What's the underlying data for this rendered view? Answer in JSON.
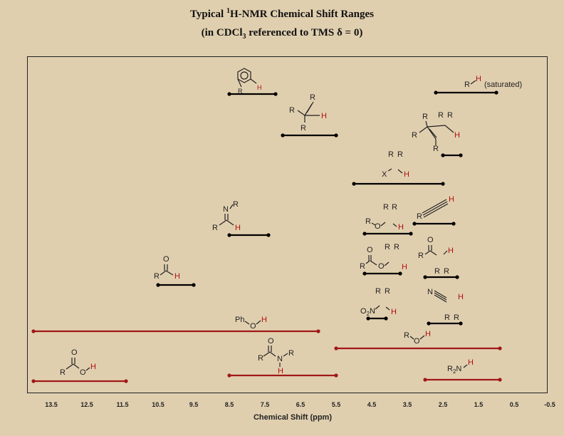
{
  "title": {
    "pre": "Typical ",
    "sup": "1",
    "post": "H-NMR Chemical Shift Ranges",
    "line2_pre": "(in CDCl",
    "line2_sub": "3",
    "line2_post": " referenced to TMS δ = 0)"
  },
  "xaxis": {
    "label": "Chemical Shift (ppm)",
    "ticks": [
      "13.5",
      "12.5",
      "11.5",
      "10.5",
      "9.5",
      "8.5",
      "7.5",
      "6.5",
      "5.5",
      "4.5",
      "3.5",
      "2.5",
      "1.5",
      "0.5",
      "-0.5"
    ],
    "tick_values": [
      13.5,
      12.5,
      11.5,
      10.5,
      9.5,
      8.5,
      7.5,
      6.5,
      5.5,
      4.5,
      3.5,
      2.5,
      1.5,
      0.5,
      -0.5
    ],
    "reversed": true
  },
  "chart_data": {
    "type": "range",
    "ranges": [
      {
        "group": "aromatic",
        "from": 8.5,
        "to": 7.2,
        "color": "#000000"
      },
      {
        "group": "vinyl",
        "from": 7.0,
        "to": 5.5,
        "color": "#000000"
      },
      {
        "group": "alkane",
        "from": 2.7,
        "to": 1.0,
        "color": "#000000"
      },
      {
        "group": "allylic",
        "from": 2.5,
        "to": 2.0,
        "color": "#000000"
      },
      {
        "group": "alpha-halo",
        "from": 5.0,
        "to": 2.5,
        "color": "#000000"
      },
      {
        "group": "imine",
        "from": 8.5,
        "to": 7.4,
        "color": "#000000"
      },
      {
        "group": "ether",
        "from": 4.7,
        "to": 3.4,
        "color": "#000000"
      },
      {
        "group": "alkyne",
        "from": 3.3,
        "to": 2.2,
        "color": "#000000"
      },
      {
        "group": "aldehyde",
        "from": 10.5,
        "to": 9.5,
        "color": "#000000"
      },
      {
        "group": "ester-alkoxy",
        "from": 4.7,
        "to": 3.7,
        "color": "#000000"
      },
      {
        "group": "alpha-carbonyl",
        "from": 3.0,
        "to": 2.1,
        "color": "#000000"
      },
      {
        "group": "nitro",
        "from": 4.6,
        "to": 4.1,
        "color": "#000000"
      },
      {
        "group": "nitrile",
        "from": 2.9,
        "to": 2.0,
        "color": "#000000"
      },
      {
        "group": "phenol",
        "from": 14.0,
        "to": 6.0,
        "color": "#a01818"
      },
      {
        "group": "alcohol",
        "from": 5.5,
        "to": 0.9,
        "color": "#a01818"
      },
      {
        "group": "amide",
        "from": 8.5,
        "to": 5.5,
        "color": "#a01818"
      },
      {
        "group": "carboxylic-acid",
        "from": 14.0,
        "to": 11.4,
        "color": "#a01818"
      },
      {
        "group": "amine",
        "from": 3.0,
        "to": 0.9,
        "color": "#a01818"
      }
    ]
  },
  "labels": {
    "R": "R",
    "H": "H",
    "N": "N",
    "O": "O",
    "X": "X",
    "saturated": "(saturated)",
    "Ph": "Ph",
    "O2N_main": "O",
    "O2N_sub": "2",
    "O2N_n": "N",
    "R2N_r": "R",
    "R2N_sub": "2",
    "R2N_n": "N"
  },
  "colors": {
    "background": "#e0cfaf",
    "ink": "#111111",
    "exchangeable": "#a01818",
    "hydrogen": "#b01010"
  }
}
